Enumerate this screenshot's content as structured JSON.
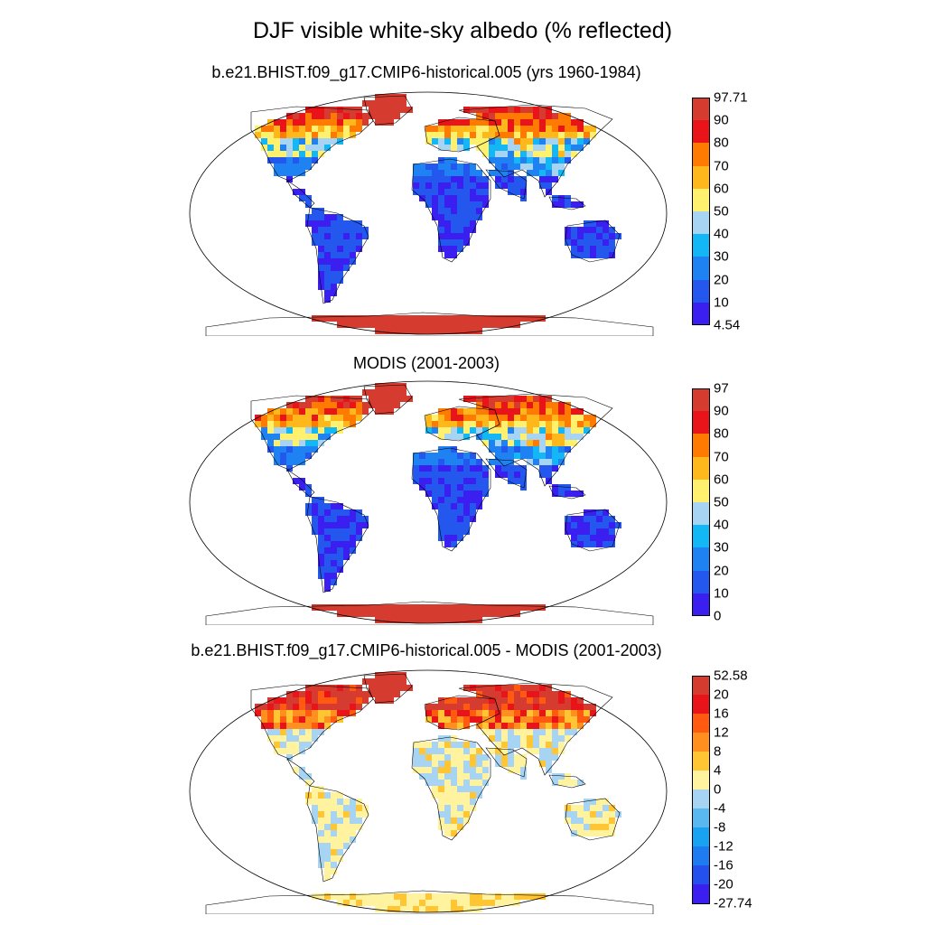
{
  "figure": {
    "title": "DJF visible white-sky albedo (% reflected)"
  },
  "panels": [
    {
      "title": "b.e21.BHIST.f09_g17.CMIP6-historical.005 (yrs 1960-1984)",
      "colorbar": {
        "labels": [
          "97.71",
          "90",
          "80",
          "70",
          "60",
          "50",
          "40",
          "30",
          "20",
          "10",
          "4.54"
        ],
        "colors": [
          "#d63b30",
          "#e8141a",
          "#ff7a00",
          "#ffb81c",
          "#fff06e",
          "#a6d4f2",
          "#14b7f5",
          "#1e82f2",
          "#2357ee",
          "#3b1ff0"
        ]
      },
      "field": "model"
    },
    {
      "title": "MODIS (2001-2003)",
      "colorbar": {
        "labels": [
          "97",
          "90",
          "80",
          "70",
          "60",
          "50",
          "40",
          "30",
          "20",
          "10",
          "0"
        ],
        "colors": [
          "#d63b30",
          "#e8141a",
          "#ff7a00",
          "#ffb81c",
          "#fff06e",
          "#a6d4f2",
          "#14b7f5",
          "#1e82f2",
          "#2357ee",
          "#3b1ff0"
        ]
      },
      "field": "obs"
    },
    {
      "title": "b.e21.BHIST.f09_g17.CMIP6-historical.005 - MODIS (2001-2003)",
      "colorbar": {
        "labels": [
          "52.58",
          "20",
          "16",
          "12",
          "8",
          "4",
          "0",
          "-4",
          "-8",
          "-12",
          "-16",
          "-20",
          "-27.74"
        ],
        "colors": [
          "#d63b30",
          "#e8141a",
          "#ff5a10",
          "#ff9020",
          "#ffc532",
          "#fff3a0",
          "#a6d4f2",
          "#5ab8f0",
          "#1aa2f2",
          "#1e7cf0",
          "#2450ee",
          "#3b1ff0"
        ]
      },
      "field": "diff"
    }
  ]
}
